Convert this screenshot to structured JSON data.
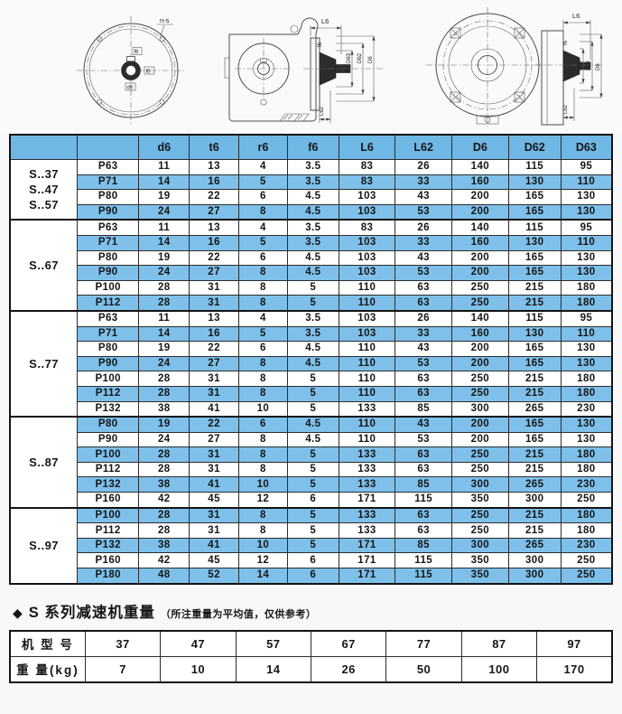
{
  "colors": {
    "header_blue": "#6fb7e4",
    "row_blue": "#7ec0ea",
    "border_dark": "#141414"
  },
  "drawings": {
    "flange_view": {
      "bolt_pattern_label": "n-s",
      "dim_f6": "f6",
      "dim_t6": "t6",
      "dim_d6": "d6"
    },
    "side_view_a": {
      "dim_L6": "L6",
      "dim_f6": "f6",
      "dim_D63": "D63",
      "dim_D62": "D62",
      "dim_D6": "D6",
      "dim_L62": "L62"
    },
    "side_view_b": {
      "dim_L6": "L6",
      "dim_f6": "f6",
      "dim_D63": "D63",
      "dim_D62": "D62",
      "dim_D6": "D6",
      "dim_L62": "L62"
    }
  },
  "main_table": {
    "columns": [
      "",
      "",
      "d6",
      "t6",
      "r6",
      "f6",
      "L6",
      "L62",
      "D6",
      "D62",
      "D63"
    ],
    "groups": [
      {
        "label_lines": [
          "S..37",
          "S..47",
          "S..57"
        ],
        "rows": [
          {
            "p": "P63",
            "values": [
              "11",
              "13",
              "4",
              "3.5",
              "83",
              "26",
              "140",
              "115",
              "95"
            ]
          },
          {
            "p": "P71",
            "values": [
              "14",
              "16",
              "5",
              "3.5",
              "83",
              "33",
              "160",
              "130",
              "110"
            ]
          },
          {
            "p": "P80",
            "values": [
              "19",
              "22",
              "6",
              "4.5",
              "103",
              "43",
              "200",
              "165",
              "130"
            ]
          },
          {
            "p": "P90",
            "values": [
              "24",
              "27",
              "8",
              "4.5",
              "103",
              "53",
              "200",
              "165",
              "130"
            ]
          }
        ]
      },
      {
        "label_lines": [
          "S..67"
        ],
        "rows": [
          {
            "p": "P63",
            "values": [
              "11",
              "13",
              "4",
              "3.5",
              "83",
              "26",
              "140",
              "115",
              "95"
            ]
          },
          {
            "p": "P71",
            "values": [
              "14",
              "16",
              "5",
              "3.5",
              "103",
              "33",
              "160",
              "130",
              "110"
            ]
          },
          {
            "p": "P80",
            "values": [
              "19",
              "22",
              "6",
              "4.5",
              "103",
              "43",
              "200",
              "165",
              "130"
            ]
          },
          {
            "p": "P90",
            "values": [
              "24",
              "27",
              "8",
              "4.5",
              "103",
              "53",
              "200",
              "165",
              "130"
            ]
          },
          {
            "p": "P100",
            "values": [
              "28",
              "31",
              "8",
              "5",
              "110",
              "63",
              "250",
              "215",
              "180"
            ]
          },
          {
            "p": "P112",
            "values": [
              "28",
              "31",
              "8",
              "5",
              "110",
              "63",
              "250",
              "215",
              "180"
            ]
          }
        ]
      },
      {
        "label_lines": [
          "S..77"
        ],
        "rows": [
          {
            "p": "P63",
            "values": [
              "11",
              "13",
              "4",
              "3.5",
              "103",
              "26",
              "140",
              "115",
              "95"
            ]
          },
          {
            "p": "P71",
            "values": [
              "14",
              "16",
              "5",
              "3.5",
              "103",
              "33",
              "160",
              "130",
              "110"
            ]
          },
          {
            "p": "P80",
            "values": [
              "19",
              "22",
              "6",
              "4.5",
              "110",
              "43",
              "200",
              "165",
              "130"
            ]
          },
          {
            "p": "P90",
            "values": [
              "24",
              "27",
              "8",
              "4.5",
              "110",
              "53",
              "200",
              "165",
              "130"
            ]
          },
          {
            "p": "P100",
            "values": [
              "28",
              "31",
              "8",
              "5",
              "110",
              "63",
              "250",
              "215",
              "180"
            ]
          },
          {
            "p": "P112",
            "values": [
              "28",
              "31",
              "8",
              "5",
              "110",
              "63",
              "250",
              "215",
              "180"
            ]
          },
          {
            "p": "P132",
            "values": [
              "38",
              "41",
              "10",
              "5",
              "133",
              "85",
              "300",
              "265",
              "230"
            ]
          }
        ]
      },
      {
        "label_lines": [
          "S..87"
        ],
        "rows": [
          {
            "p": "P80",
            "values": [
              "19",
              "22",
              "6",
              "4.5",
              "110",
              "43",
              "200",
              "165",
              "130"
            ]
          },
          {
            "p": "P90",
            "values": [
              "24",
              "27",
              "8",
              "4.5",
              "110",
              "53",
              "200",
              "165",
              "130"
            ]
          },
          {
            "p": "P100",
            "values": [
              "28",
              "31",
              "8",
              "5",
              "133",
              "63",
              "250",
              "215",
              "180"
            ]
          },
          {
            "p": "P112",
            "values": [
              "28",
              "31",
              "8",
              "5",
              "133",
              "63",
              "250",
              "215",
              "180"
            ]
          },
          {
            "p": "P132",
            "values": [
              "38",
              "41",
              "10",
              "5",
              "133",
              "85",
              "300",
              "265",
              "230"
            ]
          },
          {
            "p": "P160",
            "values": [
              "42",
              "45",
              "12",
              "6",
              "171",
              "115",
              "350",
              "300",
              "250"
            ]
          }
        ]
      },
      {
        "label_lines": [
          "S..97"
        ],
        "rows": [
          {
            "p": "P100",
            "values": [
              "28",
              "31",
              "8",
              "5",
              "133",
              "63",
              "250",
              "215",
              "180"
            ]
          },
          {
            "p": "P112",
            "values": [
              "28",
              "31",
              "8",
              "5",
              "133",
              "63",
              "250",
              "215",
              "180"
            ]
          },
          {
            "p": "P132",
            "values": [
              "38",
              "41",
              "10",
              "5",
              "171",
              "85",
              "300",
              "265",
              "230"
            ]
          },
          {
            "p": "P160",
            "values": [
              "42",
              "45",
              "12",
              "6",
              "171",
              "115",
              "350",
              "300",
              "250"
            ]
          },
          {
            "p": "P180",
            "values": [
              "48",
              "52",
              "14",
              "6",
              "171",
              "115",
              "350",
              "300",
              "250"
            ]
          }
        ]
      }
    ]
  },
  "weight_section": {
    "bullet": "◆",
    "heading": "S 系列减速机重量",
    "note": "（所注重量为平均值，仅供参考）",
    "row_labels": [
      "机  型  号",
      "重  量(kg)"
    ],
    "models": [
      "37",
      "47",
      "57",
      "67",
      "77",
      "87",
      "97"
    ],
    "weights": [
      "7",
      "10",
      "14",
      "26",
      "50",
      "100",
      "170"
    ]
  }
}
